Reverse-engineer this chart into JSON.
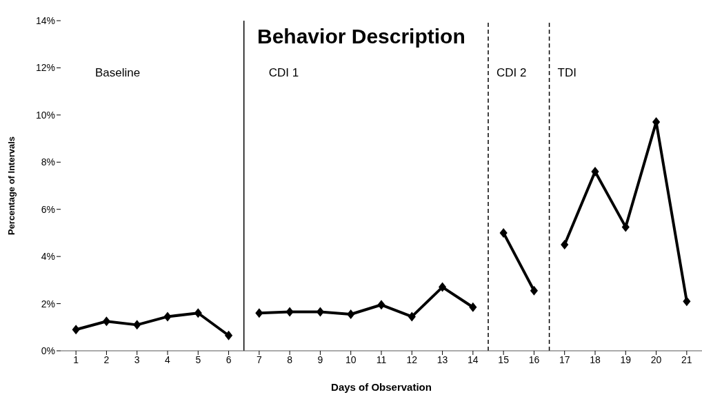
{
  "chart_data": {
    "type": "line",
    "title": "Behavior Description",
    "xlabel": "Days of Observation",
    "ylabel": "Percentage of Intervals",
    "series": [
      {
        "color": "#000000",
        "x": [
          1,
          2,
          3,
          4,
          5,
          6
        ],
        "values": [
          0.9,
          1.25,
          1.1,
          1.45,
          1.6,
          0.65
        ]
      },
      {
        "color": "#000000",
        "x": [
          7,
          8,
          9,
          10,
          11,
          12,
          13,
          14
        ],
        "values": [
          1.6,
          1.65,
          1.65,
          1.55,
          1.95,
          1.45,
          2.7,
          1.85
        ]
      },
      {
        "color": "#000000",
        "x": [
          15,
          16
        ],
        "values": [
          5.0,
          2.55
        ]
      },
      {
        "color": "#000000",
        "x": [
          17,
          18,
          19,
          20,
          21
        ],
        "values": [
          4.5,
          7.6,
          5.25,
          9.7,
          2.1
        ]
      }
    ],
    "xlim": [
      0.5,
      21.5
    ],
    "xticks": [
      1,
      2,
      3,
      4,
      5,
      6,
      7,
      8,
      9,
      10,
      11,
      12,
      13,
      14,
      15,
      16,
      17,
      18,
      19,
      20,
      21
    ],
    "ylim": [
      0,
      14
    ],
    "yticks": [
      {
        "value": 0,
        "label": "0%"
      },
      {
        "value": 2,
        "label": "2%"
      },
      {
        "value": 4,
        "label": "4%"
      },
      {
        "value": 6,
        "label": "6%"
      },
      {
        "value": 8,
        "label": "8%"
      },
      {
        "value": 10,
        "label": "10%"
      },
      {
        "value": 12,
        "label": "12%"
      },
      {
        "value": 14,
        "label": "14%"
      }
    ],
    "ref_lines": [
      {
        "axis": "x",
        "value": 6.5,
        "line_style": "solid",
        "color": "#000000"
      },
      {
        "axis": "x",
        "value": 14.5,
        "line_style": "dashed",
        "color": "#000000"
      },
      {
        "axis": "x",
        "value": 16.5,
        "line_style": "dashed",
        "color": "#000000"
      }
    ],
    "annotations": [
      "Baseline",
      "CDI 1",
      "CDI 2",
      "TDI"
    ],
    "marker": "diamond",
    "line_style": "solid",
    "grid": false,
    "legend": false
  }
}
